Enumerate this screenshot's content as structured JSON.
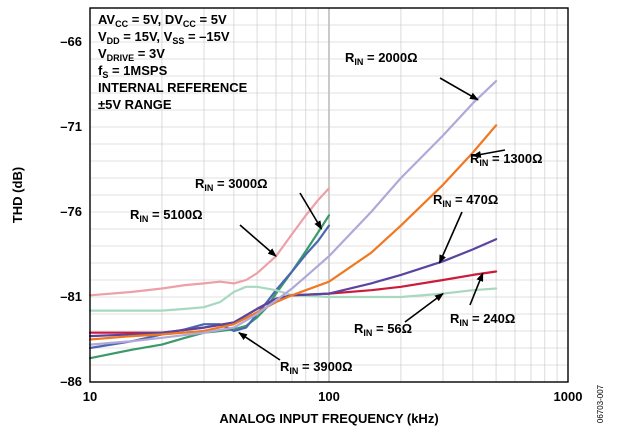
{
  "chart_data": {
    "type": "line",
    "title": "",
    "xlabel": "ANALOG INPUT FREQUENCY (kHz)",
    "ylabel": "THD (dB)",
    "xscale": "log",
    "xlim": [
      10,
      1000
    ],
    "ylim": [
      -86,
      -64
    ],
    "xticks": [
      "10",
      "100",
      "1000"
    ],
    "yticks": [
      "–66",
      "–71",
      "–76",
      "–81",
      "–86"
    ],
    "grid": true,
    "conditions": [
      {
        "base": "AV",
        "sub": "CC",
        "rest": " = 5V, DV",
        "sub2": "CC",
        "rest2": " = 5V"
      },
      {
        "base": "V",
        "sub": "DD",
        "rest": " = 15V, V",
        "sub2": "SS",
        "rest2": " = –15V"
      },
      {
        "base": "V",
        "sub": "DRIVE",
        "rest": " = 3V",
        "sub2": "",
        "rest2": ""
      },
      {
        "base": "f",
        "sub": "S",
        "rest": " = 1MSPS",
        "sub2": "",
        "rest2": ""
      },
      {
        "base": "INTERNAL REFERENCE",
        "sub": "",
        "rest": "",
        "sub2": "",
        "rest2": ""
      },
      {
        "base": "±5V RANGE",
        "sub": "",
        "rest": "",
        "sub2": "",
        "rest2": ""
      }
    ],
    "series": [
      {
        "name": "RIN = 5100Ω",
        "color": "#eda0a8",
        "x": [
          10,
          15,
          20,
          25,
          30,
          35,
          40,
          45,
          50,
          60,
          70,
          80,
          90,
          100
        ],
        "y": [
          -80.9,
          -80.7,
          -80.5,
          -80.3,
          -80.2,
          -80.1,
          -80.2,
          -80.0,
          -79.6,
          -78.6,
          -77.3,
          -76.2,
          -75.3,
          -74.6
        ]
      },
      {
        "name": "RIN = 3000Ω",
        "color": "#3a9a6a",
        "x": [
          10,
          15,
          20,
          25,
          30,
          35,
          40,
          45,
          50,
          55,
          60,
          70,
          80,
          90,
          100
        ],
        "y": [
          -84.6,
          -84.1,
          -83.8,
          -83.4,
          -83.1,
          -83.0,
          -82.9,
          -82.7,
          -82.2,
          -81.6,
          -80.8,
          -79.5,
          -78.3,
          -77.2,
          -76.2
        ]
      },
      {
        "name": "RIN = 3900Ω",
        "color": "#4a68b0",
        "x": [
          10,
          15,
          20,
          25,
          30,
          35,
          40,
          45,
          50,
          55,
          60,
          70,
          80,
          90,
          100
        ],
        "y": [
          -84.0,
          -83.6,
          -83.2,
          -82.9,
          -82.6,
          -82.6,
          -83.0,
          -82.8,
          -82.0,
          -81.3,
          -80.6,
          -79.5,
          -78.5,
          -77.7,
          -76.8
        ]
      },
      {
        "name": "RIN = 56Ω",
        "color": "#a8d8c0",
        "x": [
          10,
          15,
          20,
          25,
          30,
          35,
          40,
          45,
          50,
          60,
          70,
          100,
          150,
          200,
          300,
          400,
          500
        ],
        "y": [
          -81.8,
          -81.8,
          -81.8,
          -81.7,
          -81.6,
          -81.3,
          -80.7,
          -80.4,
          -80.4,
          -80.6,
          -80.9,
          -81.0,
          -81.0,
          -81.0,
          -80.8,
          -80.6,
          -80.5
        ]
      },
      {
        "name": "RIN = 240Ω",
        "color": "#cc1a3a",
        "x": [
          10,
          15,
          20,
          30,
          40,
          50,
          60,
          70,
          100,
          150,
          200,
          300,
          400,
          500
        ],
        "y": [
          -83.1,
          -83.1,
          -83.1,
          -82.8,
          -82.5,
          -81.7,
          -81.1,
          -80.9,
          -80.8,
          -80.6,
          -80.4,
          -80.0,
          -79.7,
          -79.5
        ]
      },
      {
        "name": "RIN = 470Ω",
        "color": "#5a44a0",
        "x": [
          10,
          15,
          20,
          30,
          40,
          50,
          60,
          70,
          100,
          150,
          200,
          300,
          400,
          500
        ],
        "y": [
          -83.3,
          -83.2,
          -83.1,
          -82.8,
          -82.5,
          -81.7,
          -81.1,
          -80.9,
          -80.8,
          -80.2,
          -79.7,
          -78.9,
          -78.2,
          -77.6
        ]
      },
      {
        "name": "RIN = 1300Ω",
        "color": "#f07820",
        "x": [
          10,
          15,
          20,
          30,
          40,
          50,
          60,
          70,
          80,
          100,
          150,
          200,
          300,
          400,
          500
        ],
        "y": [
          -83.5,
          -83.3,
          -83.2,
          -83.0,
          -82.6,
          -81.9,
          -81.3,
          -80.9,
          -80.6,
          -80.1,
          -78.4,
          -76.8,
          -74.4,
          -72.5,
          -70.9
        ]
      },
      {
        "name": "RIN = 2000Ω",
        "color": "#b0a8d8",
        "x": [
          10,
          15,
          20,
          30,
          40,
          50,
          60,
          70,
          80,
          100,
          150,
          200,
          300,
          400,
          500
        ],
        "y": [
          -83.8,
          -83.6,
          -83.4,
          -83.1,
          -82.8,
          -82.0,
          -81.2,
          -80.5,
          -79.8,
          -78.6,
          -76.0,
          -74.0,
          -71.5,
          -69.6,
          -68.3
        ]
      }
    ],
    "annotations": [
      {
        "base": "R",
        "sub": "IN",
        "rest": " = 2000Ω",
        "target_x": 420,
        "target_y": -69.4
      },
      {
        "base": "R",
        "sub": "IN",
        "rest": " = 1300Ω",
        "target_x": 400,
        "target_y": -72.7
      },
      {
        "base": "R",
        "sub": "IN",
        "rest": " = 470Ω",
        "target_x": 290,
        "target_y": -79.0
      },
      {
        "base": "R",
        "sub": "IN",
        "rest": " = 3000Ω",
        "target_x": 93,
        "target_y": -77.0
      },
      {
        "base": "R",
        "sub": "IN",
        "rest": " = 5100Ω",
        "target_x": 60,
        "target_y": -78.6
      },
      {
        "base": "R",
        "sub": "IN",
        "rest": " = 56Ω",
        "target_x": 300,
        "target_y": -80.8
      },
      {
        "base": "R",
        "sub": "IN",
        "rest": " = 240Ω",
        "target_x": 440,
        "target_y": -79.6
      },
      {
        "base": "R",
        "sub": "IN",
        "rest": " = 3900Ω",
        "target_x": 42,
        "target_y": -83.1
      }
    ]
  },
  "figure_id": "06703-007"
}
